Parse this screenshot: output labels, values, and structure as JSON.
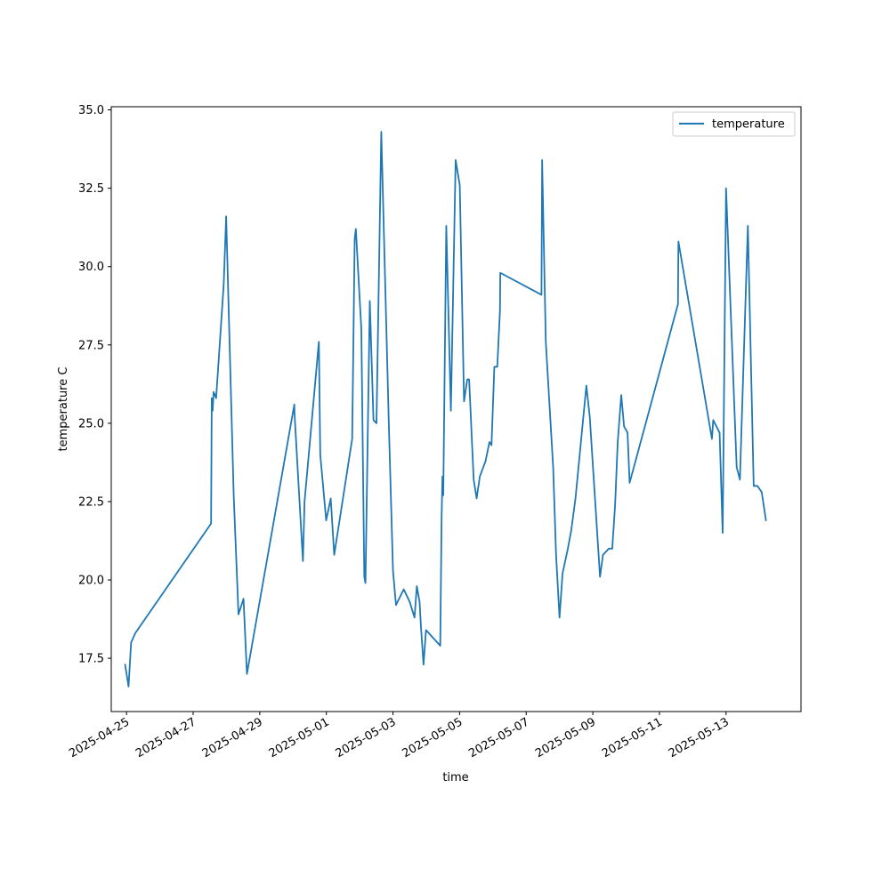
{
  "chart_data": {
    "type": "line",
    "title": "",
    "xlabel": "time",
    "ylabel": "temperature C",
    "x_range": [
      "2025-04-24 13:00",
      "2025-05-15 06:00"
    ],
    "ylim": [
      15.8,
      35.1
    ],
    "grid": false,
    "legend": {
      "position": "top-right",
      "entries": [
        "temperature"
      ]
    },
    "x_ticks": [
      "2025-04-25",
      "2025-04-27",
      "2025-04-29",
      "2025-05-01",
      "2025-05-03",
      "2025-05-05",
      "2025-05-07",
      "2025-05-09",
      "2025-05-11",
      "2025-05-13"
    ],
    "y_ticks": [
      17.5,
      20.0,
      22.5,
      25.0,
      27.5,
      30.0,
      32.5,
      35.0
    ],
    "y_tick_labels": [
      "17.5",
      "20.0",
      "22.5",
      "25.0",
      "27.5",
      "30.0",
      "32.5",
      "35.0"
    ],
    "series": [
      {
        "name": "temperature",
        "color": "#1f77b4",
        "points": [
          [
            "2025-04-24 22:58",
            17.3
          ],
          [
            "2025-04-25 01:28",
            16.6
          ],
          [
            "2025-04-25 03:18",
            18.0
          ],
          [
            "2025-04-25 06:18",
            18.3
          ],
          [
            "2025-04-27 12:56",
            21.8
          ],
          [
            "2025-04-27 13:25",
            25.8
          ],
          [
            "2025-04-27 14:05",
            25.4
          ],
          [
            "2025-04-27 14:44",
            26.0
          ],
          [
            "2025-04-27 16:34",
            25.8
          ],
          [
            "2025-04-27 22:00",
            29.4
          ],
          [
            "2025-04-27 23:48",
            31.6
          ],
          [
            "2025-04-28 05:14",
            22.7
          ],
          [
            "2025-04-28 08:41",
            18.9
          ],
          [
            "2025-04-28 12:18",
            19.4
          ],
          [
            "2025-04-28 14:46",
            17.0
          ],
          [
            "2025-04-30 00:55",
            25.6
          ],
          [
            "2025-04-30 01:04",
            25.3
          ],
          [
            "2025-04-30 07:07",
            20.6
          ],
          [
            "2025-04-30 08:17",
            22.5
          ],
          [
            "2025-04-30 18:36",
            27.6
          ],
          [
            "2025-04-30 19:36",
            24.0
          ],
          [
            "2025-04-30 23:52",
            21.9
          ],
          [
            "2025-05-01 03:09",
            22.6
          ],
          [
            "2025-05-01 05:39",
            20.8
          ],
          [
            "2025-05-01 18:36",
            24.5
          ],
          [
            "2025-05-01 20:25",
            30.9
          ],
          [
            "2025-05-01 21:15",
            31.2
          ],
          [
            "2025-05-02 01:12",
            28.0
          ],
          [
            "2025-05-02 03:20",
            20.1
          ],
          [
            "2025-05-02 04:11",
            19.9
          ],
          [
            "2025-05-02 07:18",
            28.9
          ],
          [
            "2025-05-02 09:57",
            25.1
          ],
          [
            "2025-05-02 12:07",
            25.0
          ],
          [
            "2025-05-02 15:34",
            34.3
          ],
          [
            "2025-05-02 21:00",
            25.0
          ],
          [
            "2025-05-03 00:00",
            20.3
          ],
          [
            "2025-05-03 02:10",
            19.2
          ],
          [
            "2025-05-03 07:46",
            19.7
          ],
          [
            "2025-05-03 12:03",
            19.3
          ],
          [
            "2025-05-03 15:32",
            18.8
          ],
          [
            "2025-05-03 17:11",
            19.8
          ],
          [
            "2025-05-03 19:10",
            19.3
          ],
          [
            "2025-05-03 20:10",
            18.5
          ],
          [
            "2025-05-03 22:00",
            17.3
          ],
          [
            "2025-05-03 23:48",
            18.4
          ],
          [
            "2025-05-04 10:03",
            17.9
          ],
          [
            "2025-05-04 11:03",
            22.0
          ],
          [
            "2025-05-04 11:38",
            23.3
          ],
          [
            "2025-05-04 12:14",
            22.7
          ],
          [
            "2025-05-04 14:24",
            31.3
          ],
          [
            "2025-05-04 17:43",
            25.4
          ],
          [
            "2025-05-04 21:09",
            33.4
          ],
          [
            "2025-05-05 00:07",
            32.6
          ],
          [
            "2025-05-05 03:12",
            25.7
          ],
          [
            "2025-05-05 05:32",
            26.4
          ],
          [
            "2025-05-05 06:52",
            26.4
          ],
          [
            "2025-05-05 10:09",
            23.2
          ],
          [
            "2025-05-05 12:17",
            22.6
          ],
          [
            "2025-05-05 14:35",
            23.3
          ],
          [
            "2025-05-05 18:45",
            23.8
          ],
          [
            "2025-05-05 21:31",
            24.4
          ],
          [
            "2025-05-05 23:00",
            24.3
          ],
          [
            "2025-05-06 01:02",
            26.8
          ],
          [
            "2025-05-06 03:09",
            26.8
          ],
          [
            "2025-05-06 05:06",
            28.6
          ],
          [
            "2025-05-06 05:20",
            29.8
          ],
          [
            "2025-05-07 11:00",
            29.1
          ],
          [
            "2025-05-07 11:28",
            33.4
          ],
          [
            "2025-05-07 14:07",
            27.6
          ],
          [
            "2025-05-07 19:25",
            23.6
          ],
          [
            "2025-05-07 21:31",
            20.8
          ],
          [
            "2025-05-08 00:00",
            18.8
          ],
          [
            "2025-05-08 02:10",
            20.2
          ],
          [
            "2025-05-08 06:01",
            21.0
          ],
          [
            "2025-05-08 08:30",
            21.6
          ],
          [
            "2025-05-08 11:30",
            22.6
          ],
          [
            "2025-05-08 19:21",
            26.2
          ],
          [
            "2025-05-08 21:48",
            25.2
          ],
          [
            "2025-05-09 05:11",
            20.1
          ],
          [
            "2025-05-09 07:18",
            20.8
          ],
          [
            "2025-05-09 11:33",
            21.0
          ],
          [
            "2025-05-09 14:00",
            21.0
          ],
          [
            "2025-05-09 16:04",
            22.4
          ],
          [
            "2025-05-09 17:56",
            24.4
          ],
          [
            "2025-05-09 20:29",
            25.9
          ],
          [
            "2025-05-09 22:30",
            24.9
          ],
          [
            "2025-05-10 01:00",
            24.7
          ],
          [
            "2025-05-10 02:31",
            23.1
          ],
          [
            "2025-05-11 13:21",
            28.8
          ],
          [
            "2025-05-11 13:40",
            30.8
          ],
          [
            "2025-05-12 13:50",
            24.5
          ],
          [
            "2025-05-12 14:45",
            25.1
          ],
          [
            "2025-05-12 19:21",
            24.7
          ],
          [
            "2025-05-12 21:33",
            21.5
          ],
          [
            "2025-05-13 00:00",
            32.5
          ],
          [
            "2025-05-13 07:38",
            23.6
          ],
          [
            "2025-05-13 09:59",
            23.2
          ],
          [
            "2025-05-13 15:43",
            31.3
          ],
          [
            "2025-05-13 19:55",
            23.0
          ],
          [
            "2025-05-13 22:41",
            23.0
          ],
          [
            "2025-05-14 01:42",
            22.8
          ],
          [
            "2025-05-14 04:45",
            21.9
          ]
        ]
      }
    ]
  }
}
